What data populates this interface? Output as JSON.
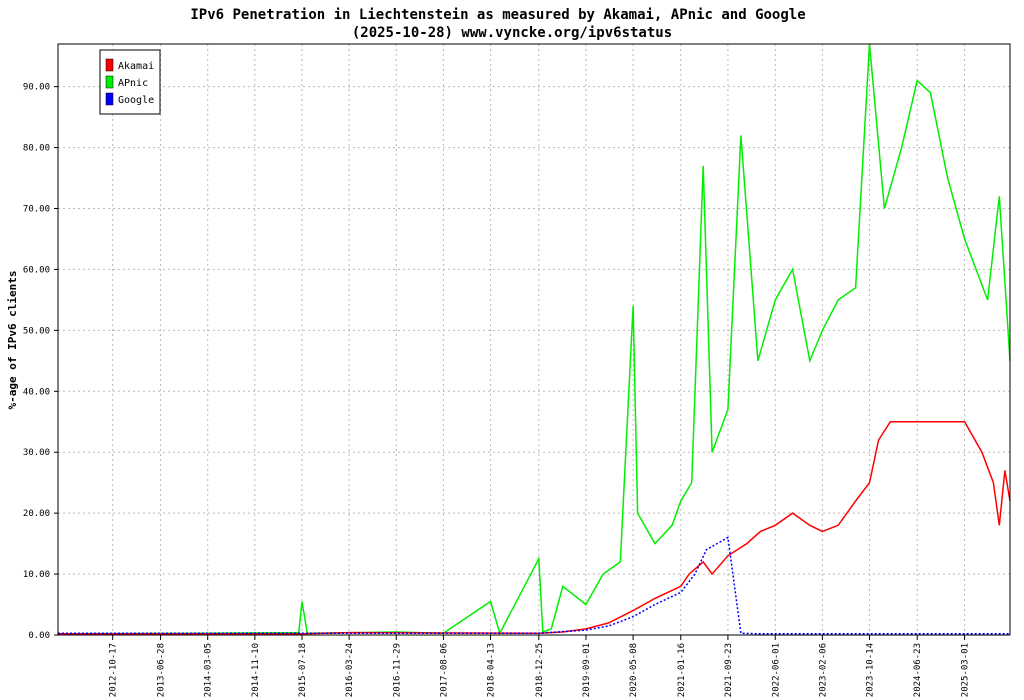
{
  "chart_data": {
    "type": "line",
    "title": "IPv6 Penetration in Liechtenstein as measured by Akamai, APnic and Google",
    "subtitle": "(2025-10-28) www.vyncke.org/ipv6status",
    "ylabel": "%-age of IPv6 clients",
    "xlabel": "",
    "ylim": [
      0,
      97
    ],
    "xlim": [
      "2012-01-01",
      "2025-10-28"
    ],
    "yticks": [
      "0.00",
      "10.00",
      "20.00",
      "30.00",
      "40.00",
      "50.00",
      "60.00",
      "70.00",
      "80.00",
      "90.00"
    ],
    "xticks": [
      "2012-10-17",
      "2013-06-28",
      "2014-03-05",
      "2014-11-10",
      "2015-07-18",
      "2016-03-24",
      "2016-11-29",
      "2017-08-06",
      "2018-04-13",
      "2018-12-25",
      "2019-09-01",
      "2020-05-08",
      "2021-01-16",
      "2021-09-23",
      "2022-06-01",
      "2023-02-06",
      "2023-10-14",
      "2024-06-23",
      "2025-03-01"
    ],
    "grid": true,
    "legend_position": "top-left",
    "series": [
      {
        "name": "Akamai",
        "color": "#ff0000",
        "x": [
          "2012-01-01",
          "2015-07-18",
          "2016-03-24",
          "2018-12-25",
          "2019-05-01",
          "2019-09-01",
          "2020-01-01",
          "2020-05-08",
          "2020-09-01",
          "2021-01-16",
          "2021-03-01",
          "2021-05-15",
          "2021-07-01",
          "2021-09-23",
          "2022-01-01",
          "2022-03-15",
          "2022-06-01",
          "2022-09-01",
          "2022-12-01",
          "2023-02-06",
          "2023-05-01",
          "2023-08-01",
          "2023-10-14",
          "2023-12-01",
          "2024-02-01",
          "2024-06-23",
          "2024-10-01",
          "2025-03-01",
          "2025-06-01",
          "2025-08-01",
          "2025-09-01",
          "2025-10-01",
          "2025-10-28"
        ],
        "values": [
          0.2,
          0.2,
          0.4,
          0.3,
          0.5,
          1.0,
          2.0,
          4.0,
          6.0,
          8.0,
          10.0,
          12.0,
          10.0,
          13.0,
          15.0,
          17.0,
          18.0,
          20.0,
          18.0,
          17.0,
          18.0,
          22.0,
          25.0,
          32.0,
          35.0,
          35.0,
          35.0,
          35.0,
          30.0,
          25.0,
          18.0,
          27.0,
          22.0
        ]
      },
      {
        "name": "APnic",
        "color": "#00ee00",
        "x": [
          "2012-01-01",
          "2014-01-01",
          "2015-07-01",
          "2015-07-18",
          "2015-08-15",
          "2016-11-29",
          "2017-08-06",
          "2018-04-13",
          "2018-06-01",
          "2018-12-25",
          "2019-01-15",
          "2019-03-01",
          "2019-05-01",
          "2019-09-01",
          "2019-12-01",
          "2020-03-01",
          "2020-05-08",
          "2020-06-01",
          "2020-09-01",
          "2020-12-01",
          "2021-01-16",
          "2021-03-15",
          "2021-05-15",
          "2021-07-01",
          "2021-09-23",
          "2021-12-01",
          "2022-03-01",
          "2022-06-01",
          "2022-09-01",
          "2022-12-01",
          "2023-02-06",
          "2023-05-01",
          "2023-08-01",
          "2023-10-14",
          "2024-01-01",
          "2024-04-01",
          "2024-06-23",
          "2024-09-01",
          "2024-12-01",
          "2025-03-01",
          "2025-05-01",
          "2025-07-01",
          "2025-09-01",
          "2025-10-28"
        ],
        "values": [
          0.2,
          0.3,
          0.4,
          5.5,
          0.3,
          0.5,
          0.3,
          5.5,
          0.3,
          12.5,
          0.5,
          1.0,
          8.0,
          5.0,
          10.0,
          12.0,
          54.0,
          20.0,
          15.0,
          18.0,
          22.0,
          25.0,
          77.0,
          30.0,
          37.0,
          82.0,
          45.0,
          55.0,
          60.0,
          45.0,
          50.0,
          55.0,
          57.0,
          97.0,
          70.0,
          80.0,
          91.0,
          89.0,
          75.0,
          65.0,
          60.0,
          55.0,
          72.0,
          45.0
        ]
      },
      {
        "name": "Google",
        "color": "#0000ff",
        "x": [
          "2012-01-01",
          "2018-12-25",
          "2019-09-01",
          "2020-01-01",
          "2020-05-08",
          "2020-09-01",
          "2021-01-16",
          "2021-04-01",
          "2021-06-01",
          "2021-09-23",
          "2021-12-01",
          "2022-03-01",
          "2025-10-28"
        ],
        "values": [
          0.3,
          0.3,
          0.8,
          1.5,
          3.0,
          5.0,
          7.0,
          10.0,
          14.0,
          16.0,
          0.3,
          0.2,
          0.2
        ]
      }
    ]
  }
}
